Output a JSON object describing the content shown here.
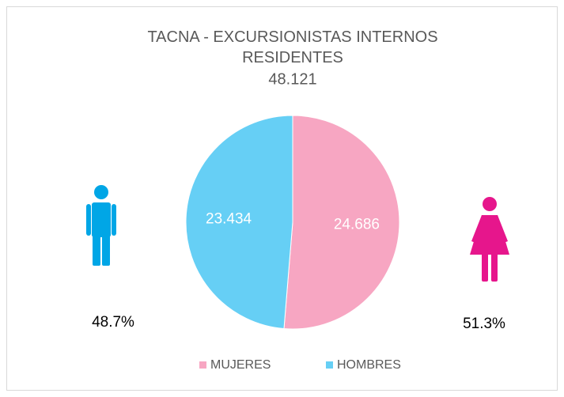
{
  "chart_data": {
    "type": "pie",
    "title": "TACNA - EXCURSIONISTAS INTERNOS RESIDENTES",
    "subtitle": "48.121",
    "categories": [
      "MUJERES",
      "HOMBRES"
    ],
    "values": [
      24686,
      23434
    ],
    "value_labels": [
      "24.686",
      "23.434"
    ],
    "colors": [
      "#f7a6c2",
      "#66cff5"
    ],
    "annotations": [
      "48.7%",
      "51.3%"
    ],
    "legend": "bottom"
  }
}
